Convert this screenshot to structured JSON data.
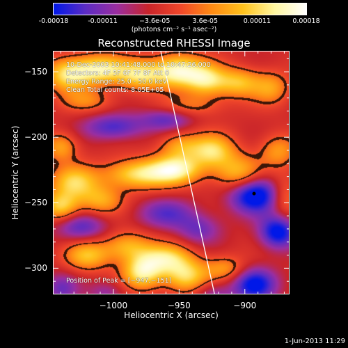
{
  "chart_data": {
    "type": "heatmap",
    "title": "Reconstructed RHESSI Image",
    "xlabel": "Heliocentric X (arcsec)",
    "ylabel": "Heliocentric Y (arcsec)",
    "xlim": [
      -1046,
      -866
    ],
    "ylim": [
      -320,
      -134
    ],
    "xticks": [
      -1000,
      -950,
      -900
    ],
    "xtick_labels": [
      "−1000",
      "−950",
      "−900"
    ],
    "yticks": [
      -300,
      -250,
      -200,
      -150
    ],
    "ytick_labels": [
      "−300",
      "−250",
      "−200",
      "−150"
    ],
    "colorbar": {
      "min": -0.00018,
      "max": 0.00018,
      "tick_values": [
        -0.00018,
        -0.00011,
        -3.6e-05,
        3.6e-05,
        0.00011,
        0.00018
      ],
      "tick_labels": [
        "-0.00018",
        "-0.00011",
        "−3.6e-05",
        "3.6e-05",
        "0.00011",
        "0.00018"
      ],
      "units": "(photons cm⁻² s⁻¹ asec⁻²)",
      "colors": [
        "#0018e8",
        "#5b2cc4",
        "#9a2ea0",
        "#c8242a",
        "#f0462a",
        "#ff8a14",
        "#ffc21c",
        "#fff7a0",
        "#ffffff"
      ]
    },
    "annotations": {
      "time_range": "10-Dec-2003 10:41:48.000 to 10:47:26.000",
      "detectors": "Detectors: 4F 5F 6F 7F 8F  Att 0",
      "energy_range": "Energy Range: 25.0 - 50.0 keV",
      "method": "Clean    Total counts: 8.05E+05",
      "peak_position": "Position of Peak = [−947,−151]"
    },
    "peak": [
      -947,
      -151
    ],
    "marker": [
      -893,
      -243
    ],
    "limb_line": [
      [
        -964,
        -134
      ],
      [
        -923,
        -320
      ]
    ],
    "blobs": [
      {
        "x": -1035,
        "y": -152,
        "sx": 12,
        "sy": 9,
        "a": 1.5
      },
      {
        "x": -1010,
        "y": -148,
        "sx": 14,
        "sy": 8,
        "a": 1.6
      },
      {
        "x": -980,
        "y": -152,
        "sx": 12,
        "sy": 8,
        "a": 1.4
      },
      {
        "x": -952,
        "y": -149,
        "sx": 13,
        "sy": 9,
        "a": 1.8
      },
      {
        "x": -930,
        "y": -156,
        "sx": 11,
        "sy": 9,
        "a": 1.4
      },
      {
        "x": -905,
        "y": -158,
        "sx": 12,
        "sy": 8,
        "a": 1.2
      },
      {
        "x": -880,
        "y": -162,
        "sx": 10,
        "sy": 9,
        "a": 0.9
      },
      {
        "x": -1020,
        "y": -172,
        "sx": 14,
        "sy": 6,
        "a": 0.7
      },
      {
        "x": -940,
        "y": -176,
        "sx": 16,
        "sy": 6,
        "a": 0.6
      },
      {
        "x": -1040,
        "y": -207,
        "sx": 9,
        "sy": 8,
        "a": 1.0
      },
      {
        "x": -950,
        "y": -206,
        "sx": 11,
        "sy": 7,
        "a": 0.9
      },
      {
        "x": -925,
        "y": -210,
        "sx": 12,
        "sy": 9,
        "a": 1.4
      },
      {
        "x": -905,
        "y": -228,
        "sx": 13,
        "sy": 10,
        "a": 1.3
      },
      {
        "x": -982,
        "y": -228,
        "sx": 18,
        "sy": 8,
        "a": 1.5
      },
      {
        "x": -952,
        "y": -224,
        "sx": 14,
        "sy": 8,
        "a": 1.6
      },
      {
        "x": -1030,
        "y": -234,
        "sx": 13,
        "sy": 9,
        "a": 1.3
      },
      {
        "x": -1040,
        "y": -253,
        "sx": 10,
        "sy": 8,
        "a": 1.4
      },
      {
        "x": -1010,
        "y": -248,
        "sx": 12,
        "sy": 8,
        "a": 1.0
      },
      {
        "x": -875,
        "y": -210,
        "sx": 10,
        "sy": 9,
        "a": 0.9
      },
      {
        "x": -870,
        "y": -245,
        "sx": 8,
        "sy": 12,
        "a": 0.8
      },
      {
        "x": -1020,
        "y": -290,
        "sx": 12,
        "sy": 8,
        "a": 1.2
      },
      {
        "x": -990,
        "y": -283,
        "sx": 13,
        "sy": 8,
        "a": 1.1
      },
      {
        "x": -960,
        "y": -292,
        "sx": 14,
        "sy": 8,
        "a": 1.3
      },
      {
        "x": -978,
        "y": -303,
        "sx": 11,
        "sy": 9,
        "a": 1.6
      },
      {
        "x": -945,
        "y": -306,
        "sx": 12,
        "sy": 9,
        "a": 1.4
      },
      {
        "x": -915,
        "y": -300,
        "sx": 11,
        "sy": 7,
        "a": 0.9
      },
      {
        "x": -893,
        "y": -243,
        "sx": 14,
        "sy": 10,
        "a": -1.9
      },
      {
        "x": -875,
        "y": -272,
        "sx": 10,
        "sy": 9,
        "a": -1.6
      },
      {
        "x": -893,
        "y": -312,
        "sx": 12,
        "sy": 9,
        "a": -1.5
      },
      {
        "x": -1000,
        "y": -192,
        "sx": 16,
        "sy": 7,
        "a": -1.1
      },
      {
        "x": -960,
        "y": -186,
        "sx": 14,
        "sy": 6,
        "a": -0.9
      },
      {
        "x": -1025,
        "y": -268,
        "sx": 14,
        "sy": 8,
        "a": -1.0
      },
      {
        "x": -960,
        "y": -258,
        "sx": 16,
        "sy": 8,
        "a": -0.9
      },
      {
        "x": -935,
        "y": -270,
        "sx": 12,
        "sy": 8,
        "a": -0.8
      },
      {
        "x": -1040,
        "y": -315,
        "sx": 9,
        "sy": 8,
        "a": -0.8
      },
      {
        "x": -925,
        "y": -320,
        "sx": 10,
        "sy": 7,
        "a": -0.7
      },
      {
        "x": -1005,
        "y": -318,
        "sx": 10,
        "sy": 6,
        "a": -0.6
      }
    ]
  },
  "footer": {
    "date": "1-Jun-2013 11:29"
  }
}
